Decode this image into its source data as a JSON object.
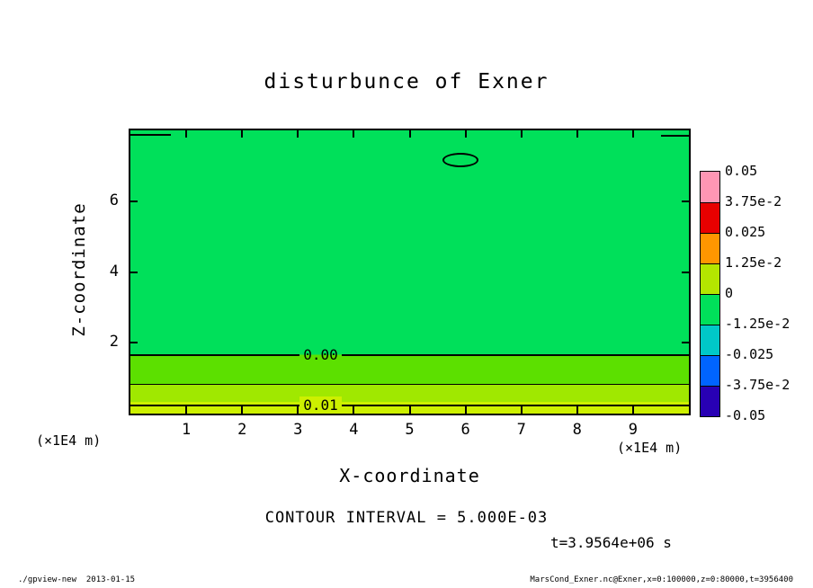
{
  "chart_data": {
    "type": "heatmap",
    "title": "disturbunce of Exner",
    "xlabel": "X-coordinate",
    "ylabel": "Z-coordinate",
    "x_unit_label": "(×1E4 m)",
    "y_unit_label": "(×1E4 m)",
    "xlim": [
      0,
      10
    ],
    "ylim": [
      0,
      8
    ],
    "x_ticks": [
      "1",
      "2",
      "3",
      "4",
      "5",
      "6",
      "7",
      "8",
      "9"
    ],
    "y_ticks": [
      "2",
      "4",
      "6"
    ],
    "contour_interval_label": "CONTOUR INTERVAL = 5.000E-03",
    "time_label": "t=3.9564e+06 s",
    "field_bands": [
      {
        "z_from": 1.65,
        "z_to": 8.0,
        "color": "#00e05a"
      },
      {
        "z_from": 0.82,
        "z_to": 1.65,
        "color": "#5ce000"
      },
      {
        "z_from": 0.33,
        "z_to": 0.82,
        "color": "#a0e800"
      },
      {
        "z_from": 0.0,
        "z_to": 0.33,
        "color": "#cdf000"
      }
    ],
    "contours": [
      {
        "label": "0.00",
        "z": 1.65,
        "thin": false,
        "label_x": 3.45,
        "bg_top": "#00e05a",
        "bg_bottom": "#5ce000"
      },
      {
        "label": "",
        "z": 0.82,
        "thin": true,
        "label_x": 0,
        "bg_top": "",
        "bg_bottom": ""
      },
      {
        "label": "0.01",
        "z": 0.22,
        "thin": false,
        "label_x": 3.45,
        "bg_top": "#cdf000",
        "bg_bottom": "#cdf000"
      }
    ],
    "closed_contour": {
      "x": 5.88,
      "z": 7.21,
      "rx": 0.29,
      "rz": 0.15
    },
    "edge_segments": [
      {
        "x_from": 0.0,
        "x_to": 0.72,
        "z": 7.87
      },
      {
        "x_from": 9.5,
        "x_to": 10.0,
        "z": 7.85
      }
    ],
    "colorbar": {
      "labels": [
        "0.05",
        "3.75e-2",
        "0.025",
        "1.25e-2",
        "0",
        "-1.25e-2",
        "-0.025",
        "-3.75e-2",
        "-0.05"
      ],
      "band_colors": [
        "#ff96b4",
        "#e80000",
        "#ff9600",
        "#b4e600",
        "#00e05a",
        "#00c8c8",
        "#0064ff",
        "#2800b4"
      ]
    }
  },
  "footer": {
    "left": "./gpview-new  2013-01-15",
    "right": "MarsCond_Exner.nc@Exner,x=0:100000,z=0:80000,t=3956400"
  }
}
